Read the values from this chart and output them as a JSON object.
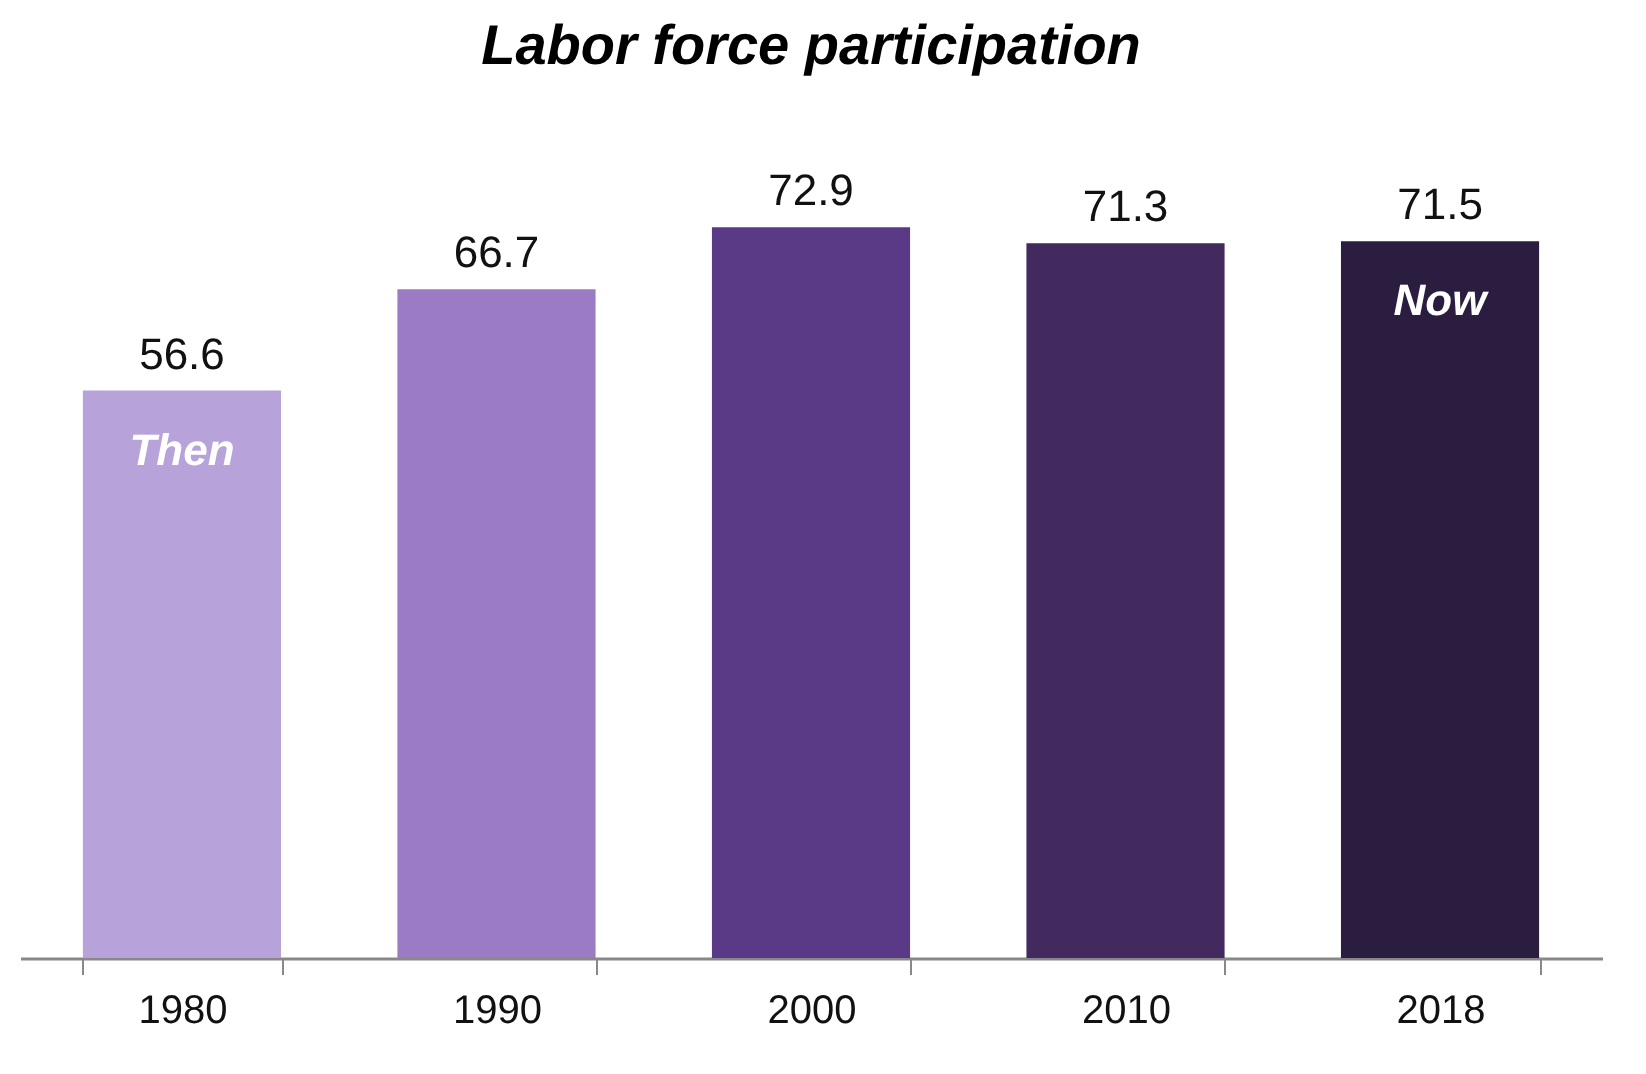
{
  "chart_data": {
    "type": "bar",
    "title": "Labor force participation",
    "categories": [
      "1980",
      "1990",
      "2000",
      "2010",
      "2018"
    ],
    "values": [
      56.6,
      66.7,
      72.9,
      71.3,
      71.5
    ],
    "colors": [
      "#b7a3d9",
      "#9a7bc4",
      "#5a3a86",
      "#42295e",
      "#2b1d40"
    ],
    "data_labels": true,
    "annotations": [
      "Then",
      "Now"
    ]
  }
}
